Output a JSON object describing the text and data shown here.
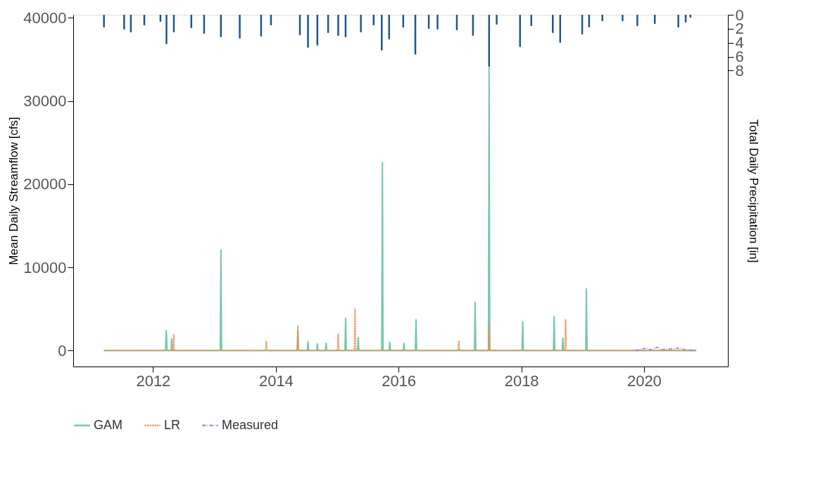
{
  "chart_data": {
    "type": "line",
    "ylabel": "Mean Daily Streamflow [cfs]",
    "y2label": "Total Daily Precipitation [in]",
    "xlim": [
      "2010-09-13",
      "2021-05-14"
    ],
    "xticks": [
      {
        "value": "2012-01-01",
        "label": "2012"
      },
      {
        "value": "2014-01-01",
        "label": "2014"
      },
      {
        "value": "2016-01-01",
        "label": "2016"
      },
      {
        "value": "2018-01-01",
        "label": "2018"
      },
      {
        "value": "2020-01-01",
        "label": "2020"
      }
    ],
    "ylim": [
      -1920,
      40380
    ],
    "yticks": [
      0,
      10000,
      20000,
      30000,
      40000
    ],
    "y2lim": [
      50.4,
      0
    ],
    "y2ticks": [
      0,
      2,
      4,
      6,
      8
    ],
    "grid": false,
    "legend": "bottom",
    "series": [
      {
        "type": "bar",
        "axis": "y2",
        "color": "#1f5591",
        "x": [
          "2011-03-15",
          "2011-07-13",
          "2011-08-22",
          "2011-11-10",
          "2012-02-14",
          "2012-03-21",
          "2012-05-04",
          "2012-08-16",
          "2012-10-31",
          "2013-02-08",
          "2013-05-31",
          "2013-10-05",
          "2013-12-03",
          "2014-05-24",
          "2014-07-11",
          "2014-09-05",
          "2014-11-08",
          "2015-01-07",
          "2015-02-20",
          "2015-05-22",
          "2015-08-06",
          "2015-09-23",
          "2015-11-06",
          "2016-01-29",
          "2016-04-10",
          "2016-06-29",
          "2016-08-20",
          "2016-12-13",
          "2017-03-19",
          "2017-06-23",
          "2017-08-07",
          "2017-12-24",
          "2018-03-01",
          "2018-07-07",
          "2018-08-20",
          "2018-12-29",
          "2019-02-08",
          "2019-04-28",
          "2019-08-26",
          "2019-11-22",
          "2020-03-05",
          "2020-07-23",
          "2020-09-05",
          "2020-10-03"
        ],
        "values": [
          1.8,
          2.1,
          2.5,
          1.5,
          1.0,
          4.2,
          2.5,
          1.9,
          2.7,
          3.2,
          3.4,
          3.1,
          1.5,
          2.9,
          4.7,
          4.4,
          2.6,
          3.0,
          3.2,
          2.5,
          1.5,
          5.1,
          3.5,
          1.8,
          5.7,
          2.0,
          2.1,
          2.2,
          3.0,
          7.4,
          1.4,
          4.6,
          1.6,
          2.6,
          4.0,
          2.8,
          1.8,
          0.9,
          0.9,
          1.6,
          1.3,
          1.8,
          1.1,
          0.4
        ]
      },
      {
        "name": "GAM",
        "color": "#5cc09a",
        "line_style": "solid",
        "x": [
          "2011-03-15",
          "2012-03-15",
          "2012-03-20",
          "2012-03-25",
          "2012-04-17",
          "2012-04-21",
          "2012-04-25",
          "2013-02-04",
          "2013-02-08",
          "2013-02-12",
          "2014-05-08",
          "2014-05-12",
          "2014-05-16",
          "2014-07-07",
          "2014-07-11",
          "2014-07-15",
          "2014-09-01",
          "2014-09-05",
          "2014-09-09",
          "2014-10-23",
          "2014-10-27",
          "2014-10-31",
          "2015-02-16",
          "2015-02-20",
          "2015-02-24",
          "2015-05-02",
          "2015-05-06",
          "2015-05-10",
          "2015-09-23",
          "2015-09-27",
          "2015-10-01",
          "2015-11-06",
          "2015-11-10",
          "2015-11-14",
          "2016-01-29",
          "2016-02-02",
          "2016-02-06",
          "2016-04-10",
          "2016-04-14",
          "2016-04-18",
          "2017-03-28",
          "2017-04-01",
          "2017-04-05",
          "2017-06-19",
          "2017-06-23",
          "2017-06-27",
          "2018-01-05",
          "2018-01-09",
          "2018-01-13",
          "2018-07-11",
          "2018-07-15",
          "2018-07-19",
          "2018-09-01",
          "2018-09-05",
          "2018-09-09",
          "2019-01-19",
          "2019-01-23",
          "2019-01-27",
          "2020-11-07"
        ],
        "values": [
          0,
          0,
          2400,
          0,
          0,
          1400,
          0,
          0,
          12100,
          0,
          0,
          2400,
          0,
          0,
          1100,
          0,
          0,
          800,
          0,
          0,
          900,
          0,
          0,
          3900,
          0,
          0,
          1600,
          0,
          0,
          22600,
          0,
          0,
          1000,
          0,
          0,
          900,
          0,
          0,
          3700,
          0,
          0,
          5800,
          0,
          0,
          34300,
          0,
          0,
          3500,
          0,
          0,
          4100,
          0,
          0,
          1500,
          0,
          0,
          7400,
          0,
          0
        ]
      },
      {
        "name": "LR",
        "color": "#f08a4b",
        "line_style": "dashed",
        "x": [
          "2011-03-15",
          "2012-04-29",
          "2012-05-03",
          "2012-05-07",
          "2013-11-01",
          "2013-11-05",
          "2013-11-09",
          "2014-05-08",
          "2014-05-12",
          "2014-05-16",
          "2015-01-03",
          "2015-01-07",
          "2015-01-11",
          "2015-04-13",
          "2015-04-17",
          "2015-04-21",
          "2016-12-21",
          "2016-12-25",
          "2016-12-29",
          "2017-06-19",
          "2017-06-23",
          "2017-06-27",
          "2018-09-17",
          "2018-09-21",
          "2018-09-25",
          "2020-11-07"
        ],
        "values": [
          0,
          0,
          1900,
          0,
          0,
          1100,
          0,
          0,
          3000,
          0,
          0,
          2000,
          0,
          0,
          5000,
          0,
          0,
          1200,
          0,
          0,
          3000,
          0,
          0,
          3700,
          0,
          0
        ]
      },
      {
        "name": "Measured",
        "color": "#8b86c4",
        "line_style": "dashdot",
        "x": [
          "2019-11-10",
          "2020-01-15",
          "2020-02-10",
          "2020-03-20",
          "2020-04-10",
          "2020-08-01",
          "2020-09-01",
          "2020-11-07"
        ],
        "values": [
          0,
          300,
          100,
          400,
          100,
          300,
          100,
          0
        ]
      }
    ]
  }
}
